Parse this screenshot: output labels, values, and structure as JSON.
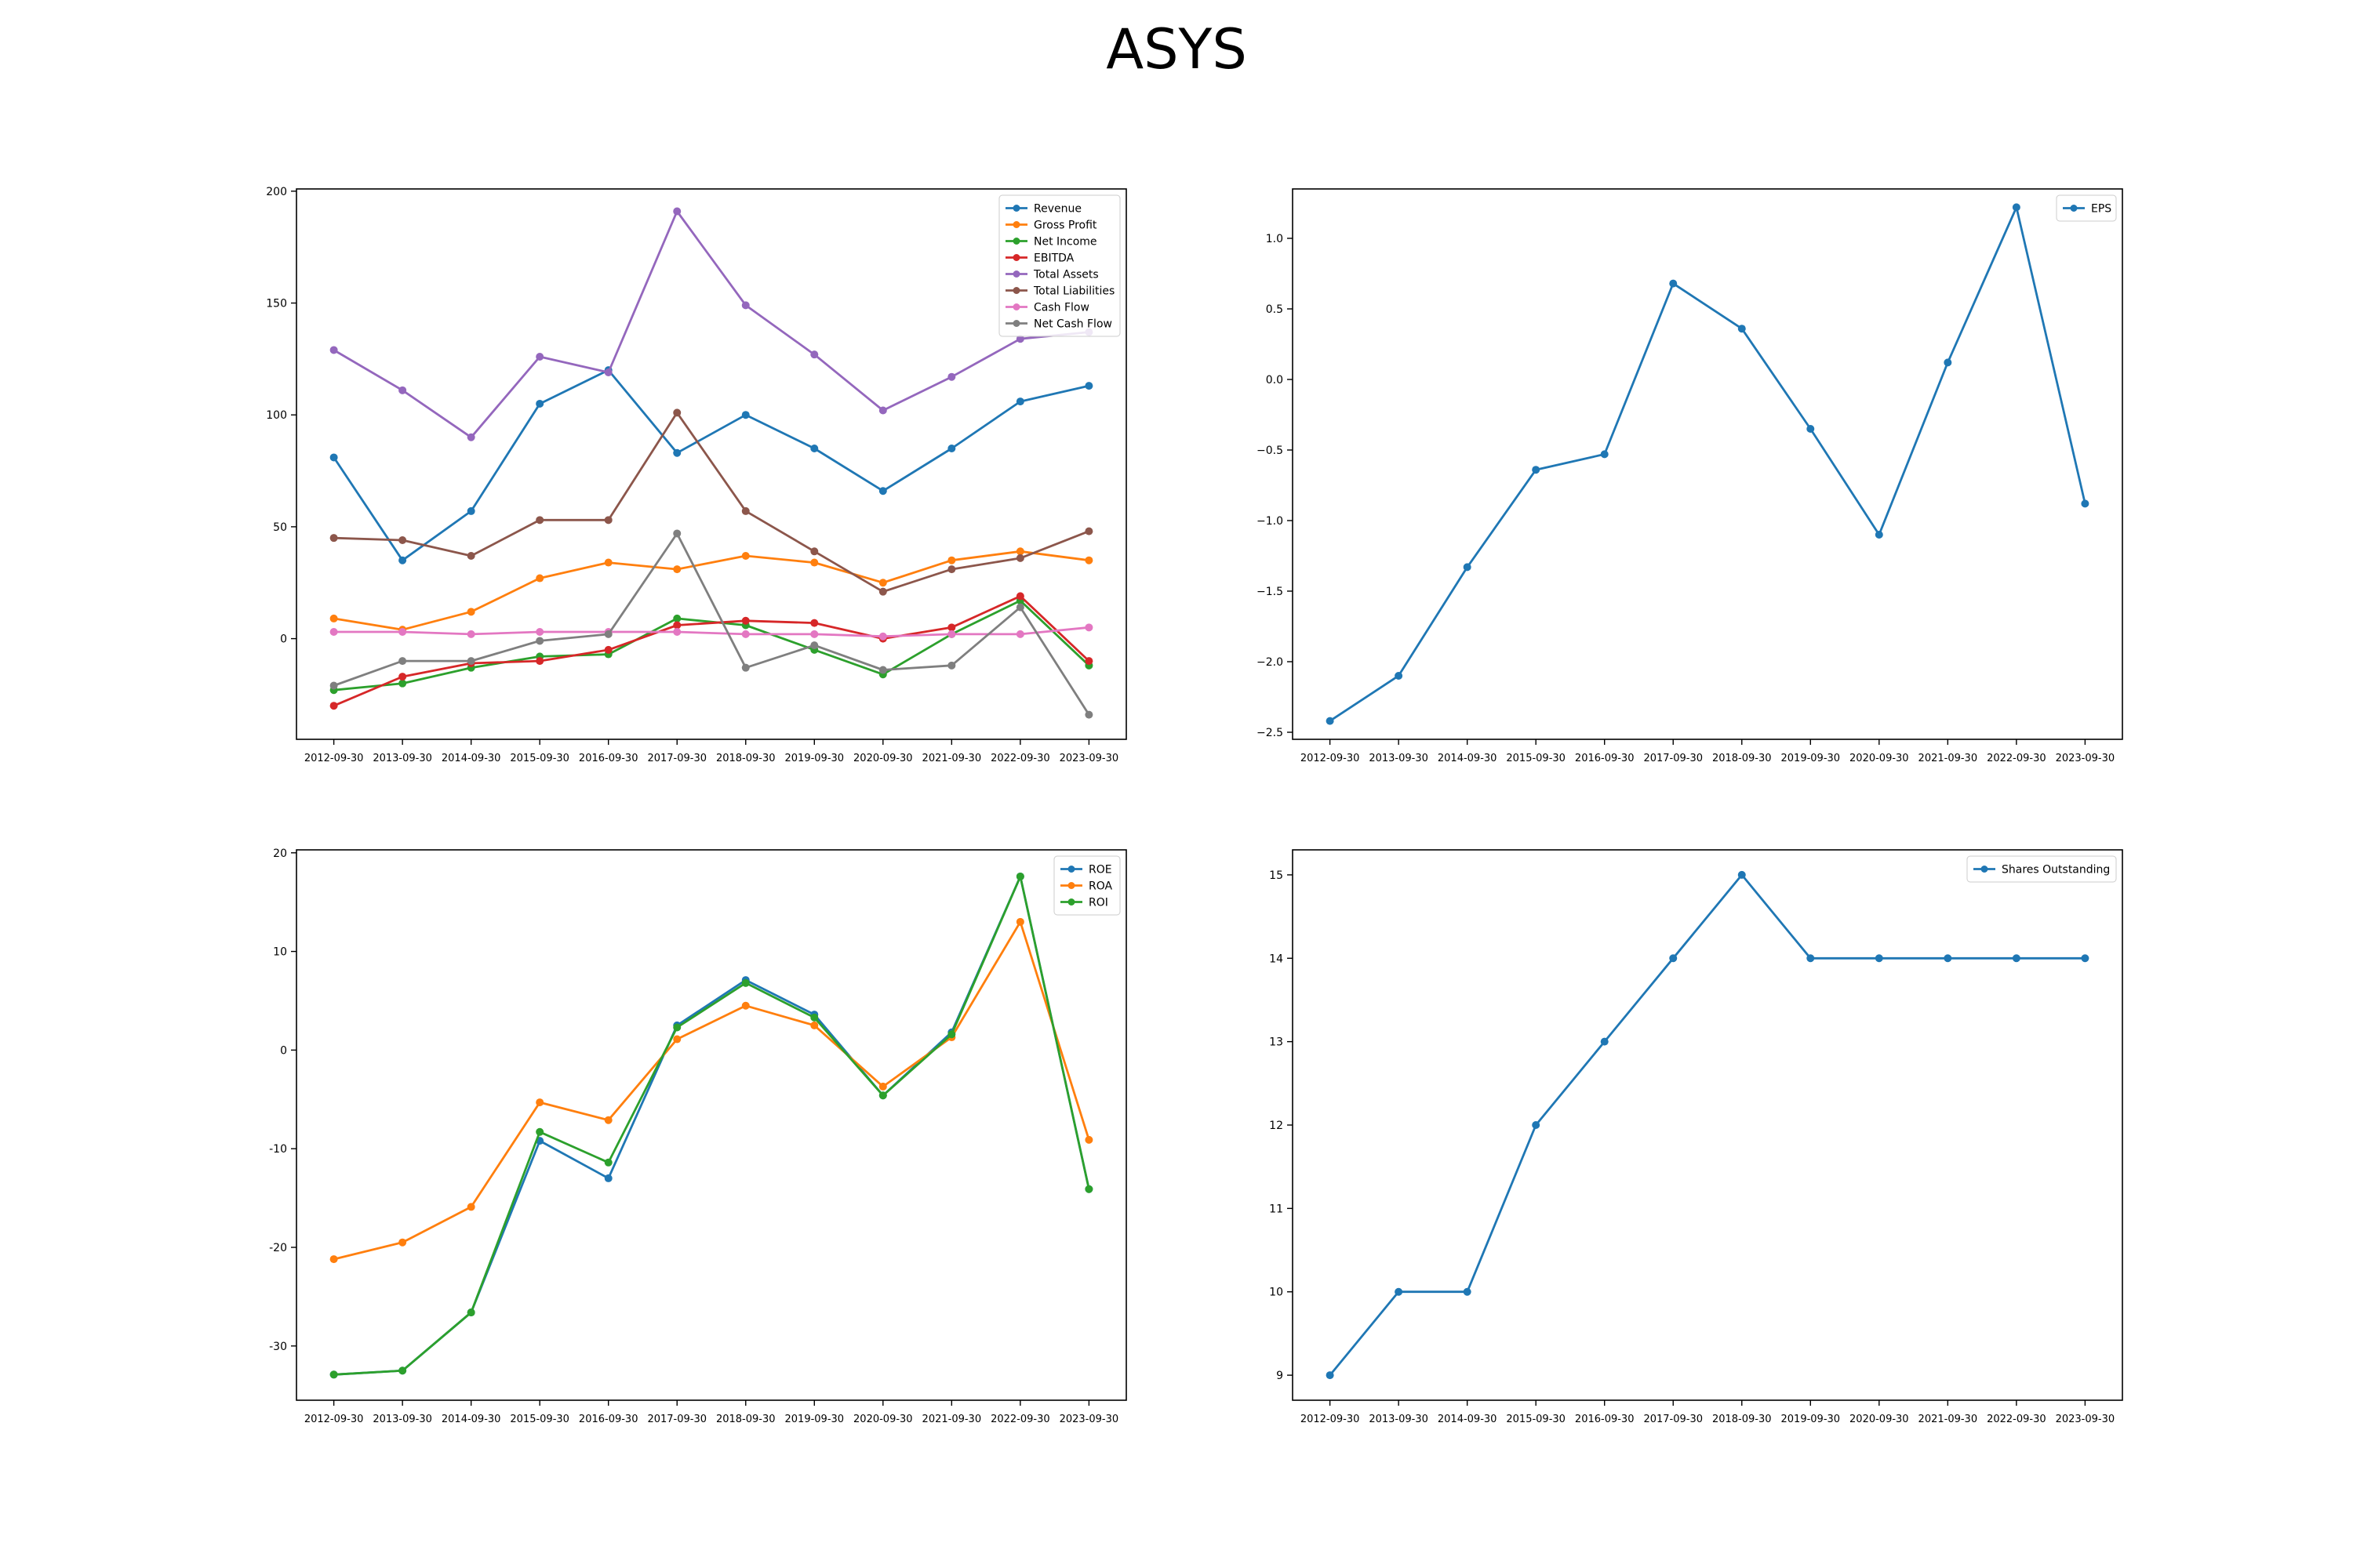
{
  "title": "ASYS",
  "chart_data": [
    {
      "type": "line",
      "x": [
        "2012-09-30",
        "2013-09-30",
        "2014-09-30",
        "2015-09-30",
        "2016-09-30",
        "2017-09-30",
        "2018-09-30",
        "2019-09-30",
        "2020-09-30",
        "2021-09-30",
        "2022-09-30",
        "2023-09-30"
      ],
      "ylim": [
        -45,
        201
      ],
      "yticks": [
        0,
        50,
        100,
        150,
        200
      ],
      "grid": false,
      "legend": "top-right",
      "series": [
        {
          "name": "Revenue",
          "color": "#1f77b4",
          "values": [
            81,
            35,
            57,
            105,
            120,
            83,
            100,
            85,
            66,
            85,
            106,
            113
          ]
        },
        {
          "name": "Gross Profit",
          "color": "#ff7f0e",
          "values": [
            9,
            4,
            12,
            27,
            34,
            31,
            37,
            34,
            25,
            35,
            39,
            35
          ]
        },
        {
          "name": "Net Income",
          "color": "#2ca02c",
          "values": [
            -23,
            -20,
            -13,
            -8,
            -7,
            9,
            6,
            -5,
            -16,
            2,
            17,
            -12
          ]
        },
        {
          "name": "EBITDA",
          "color": "#d62728",
          "values": [
            -30,
            -17,
            -11,
            -10,
            -5,
            6,
            8,
            7,
            0,
            5,
            19,
            -10
          ]
        },
        {
          "name": "Total Assets",
          "color": "#9467bd",
          "values": [
            129,
            111,
            90,
            126,
            119,
            191,
            149,
            127,
            102,
            117,
            134,
            137
          ]
        },
        {
          "name": "Total Liabilities",
          "color": "#8c564b",
          "values": [
            45,
            44,
            37,
            53,
            53,
            101,
            57,
            39,
            21,
            31,
            36,
            48
          ]
        },
        {
          "name": "Cash Flow",
          "color": "#e377c2",
          "values": [
            3,
            3,
            2,
            3,
            3,
            3,
            2,
            2,
            1,
            2,
            2,
            5
          ]
        },
        {
          "name": "Net Cash Flow",
          "color": "#7f7f7f",
          "values": [
            -21,
            -10,
            -10,
            -1,
            2,
            47,
            -13,
            -3,
            -14,
            -12,
            14,
            -34
          ]
        }
      ]
    },
    {
      "type": "line",
      "x": [
        "2012-09-30",
        "2013-09-30",
        "2014-09-30",
        "2015-09-30",
        "2016-09-30",
        "2017-09-30",
        "2018-09-30",
        "2019-09-30",
        "2020-09-30",
        "2021-09-30",
        "2022-09-30",
        "2023-09-30"
      ],
      "ylim": [
        -2.55,
        1.35
      ],
      "yticks": [
        -2.5,
        -2.0,
        -1.5,
        -1.0,
        -0.5,
        0.0,
        0.5,
        1.0
      ],
      "ytick_labels": [
        "−2.5",
        "−2.0",
        "−1.5",
        "−1.0",
        "−0.5",
        "0.0",
        "0.5",
        "1.0"
      ],
      "grid": false,
      "legend": "top-right",
      "series": [
        {
          "name": "EPS",
          "color": "#1f77b4",
          "values": [
            -2.42,
            -2.1,
            -1.33,
            -0.64,
            -0.53,
            0.68,
            0.36,
            -0.35,
            -1.1,
            0.12,
            1.22,
            -0.88
          ]
        }
      ]
    },
    {
      "type": "line",
      "x": [
        "2012-09-30",
        "2013-09-30",
        "2014-09-30",
        "2015-09-30",
        "2016-09-30",
        "2017-09-30",
        "2018-09-30",
        "2019-09-30",
        "2020-09-30",
        "2021-09-30",
        "2022-09-30",
        "2023-09-30"
      ],
      "ylim": [
        -35.5,
        20.3
      ],
      "yticks": [
        -30,
        -20,
        -10,
        0,
        10,
        20
      ],
      "grid": false,
      "legend": "top-right",
      "series": [
        {
          "name": "ROE",
          "color": "#1f77b4",
          "values": [
            -32.9,
            -32.5,
            -26.6,
            -9.2,
            -13.0,
            2.5,
            7.1,
            3.6,
            -4.6,
            1.8,
            17.6,
            -14.1
          ]
        },
        {
          "name": "ROA",
          "color": "#ff7f0e",
          "values": [
            -21.2,
            -19.5,
            -15.9,
            -5.3,
            -7.1,
            1.1,
            4.5,
            2.5,
            -3.7,
            1.3,
            13.0,
            -9.1
          ]
        },
        {
          "name": "ROI",
          "color": "#2ca02c",
          "values": [
            -32.9,
            -32.5,
            -26.6,
            -8.3,
            -11.4,
            2.3,
            6.8,
            3.3,
            -4.6,
            1.6,
            17.6,
            -14.1
          ]
        }
      ]
    },
    {
      "type": "line",
      "x": [
        "2012-09-30",
        "2013-09-30",
        "2014-09-30",
        "2015-09-30",
        "2016-09-30",
        "2017-09-30",
        "2018-09-30",
        "2019-09-30",
        "2020-09-30",
        "2021-09-30",
        "2022-09-30",
        "2023-09-30"
      ],
      "ylim": [
        8.7,
        15.3
      ],
      "yticks": [
        9,
        10,
        11,
        12,
        13,
        14,
        15
      ],
      "grid": false,
      "legend": "top-right",
      "series": [
        {
          "name": "Shares Outstanding",
          "color": "#1f77b4",
          "values": [
            9,
            10,
            10,
            12,
            13,
            14,
            15,
            14,
            14,
            14,
            14,
            14
          ]
        }
      ]
    }
  ]
}
